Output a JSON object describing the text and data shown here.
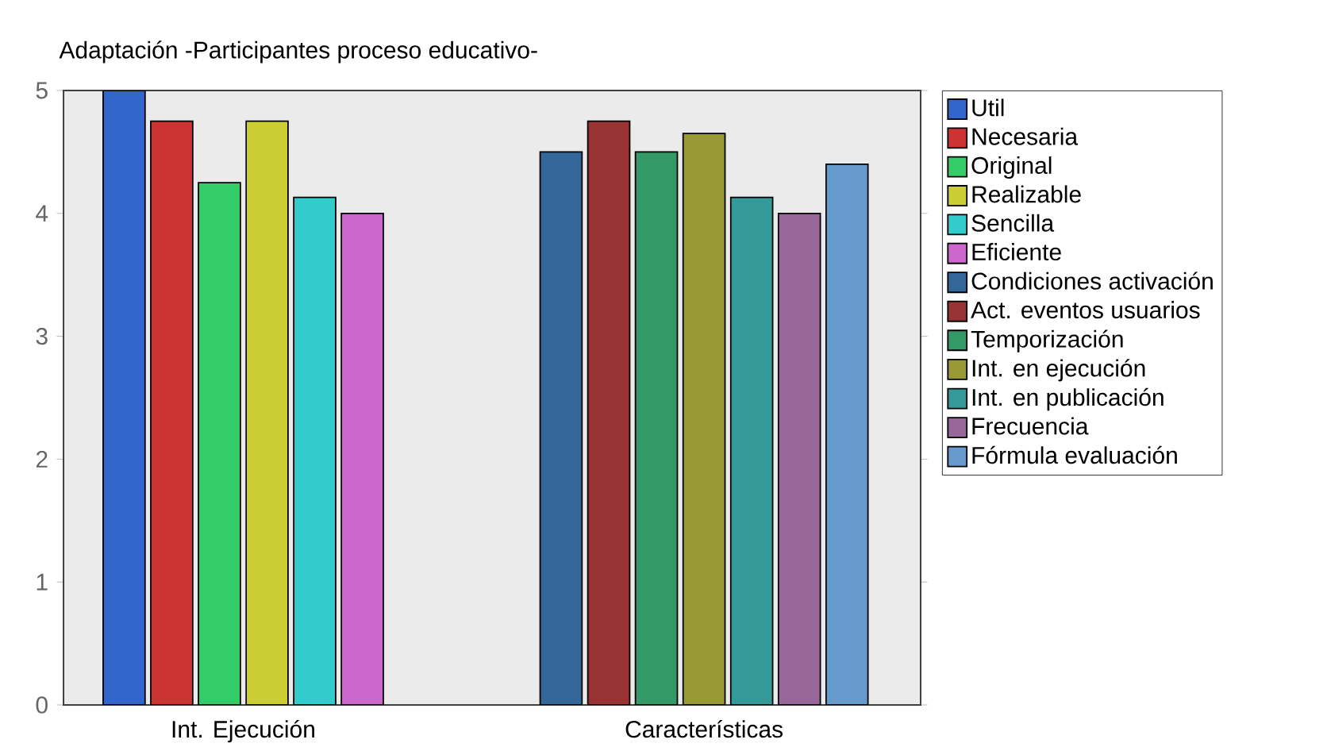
{
  "chart_data": {
    "type": "bar",
    "title": "Adaptación    -Participantes proceso educativo-",
    "categories": [
      "Int. Ejecución",
      "Características"
    ],
    "series": [
      {
        "name": "Util",
        "color": "#3366cc",
        "values": [
          5.0,
          null
        ]
      },
      {
        "name": "Necesaria",
        "color": "#cc3333",
        "values": [
          4.75,
          null
        ]
      },
      {
        "name": "Original",
        "color": "#33cc66",
        "values": [
          4.25,
          null
        ]
      },
      {
        "name": "Realizable",
        "color": "#cccc33",
        "values": [
          4.75,
          null
        ]
      },
      {
        "name": "Sencilla",
        "color": "#33cccc",
        "values": [
          4.13,
          null
        ]
      },
      {
        "name": "Eficiente",
        "color": "#cc66cc",
        "values": [
          4.0,
          null
        ]
      },
      {
        "name": "Condiciones activación",
        "color": "#336699",
        "values": [
          null,
          4.5
        ]
      },
      {
        "name": "Act. eventos usuarios",
        "color": "#993333",
        "values": [
          null,
          4.75
        ]
      },
      {
        "name": "Temporización",
        "color": "#339966",
        "values": [
          null,
          4.5
        ]
      },
      {
        "name": "Int. en ejecución",
        "color": "#999933",
        "values": [
          null,
          4.65
        ]
      },
      {
        "name": "Int. en publicación",
        "color": "#339999",
        "values": [
          null,
          4.13
        ]
      },
      {
        "name": "Frecuencia",
        "color": "#996699",
        "values": [
          null,
          4.0
        ]
      },
      {
        "name": "Fórmula evaluación",
        "color": "#6699cc",
        "values": [
          null,
          4.4
        ]
      }
    ],
    "ylim": [
      0,
      5
    ],
    "yticks": [
      0,
      1,
      2,
      3,
      4,
      5
    ],
    "legend": "right",
    "grid": false
  }
}
